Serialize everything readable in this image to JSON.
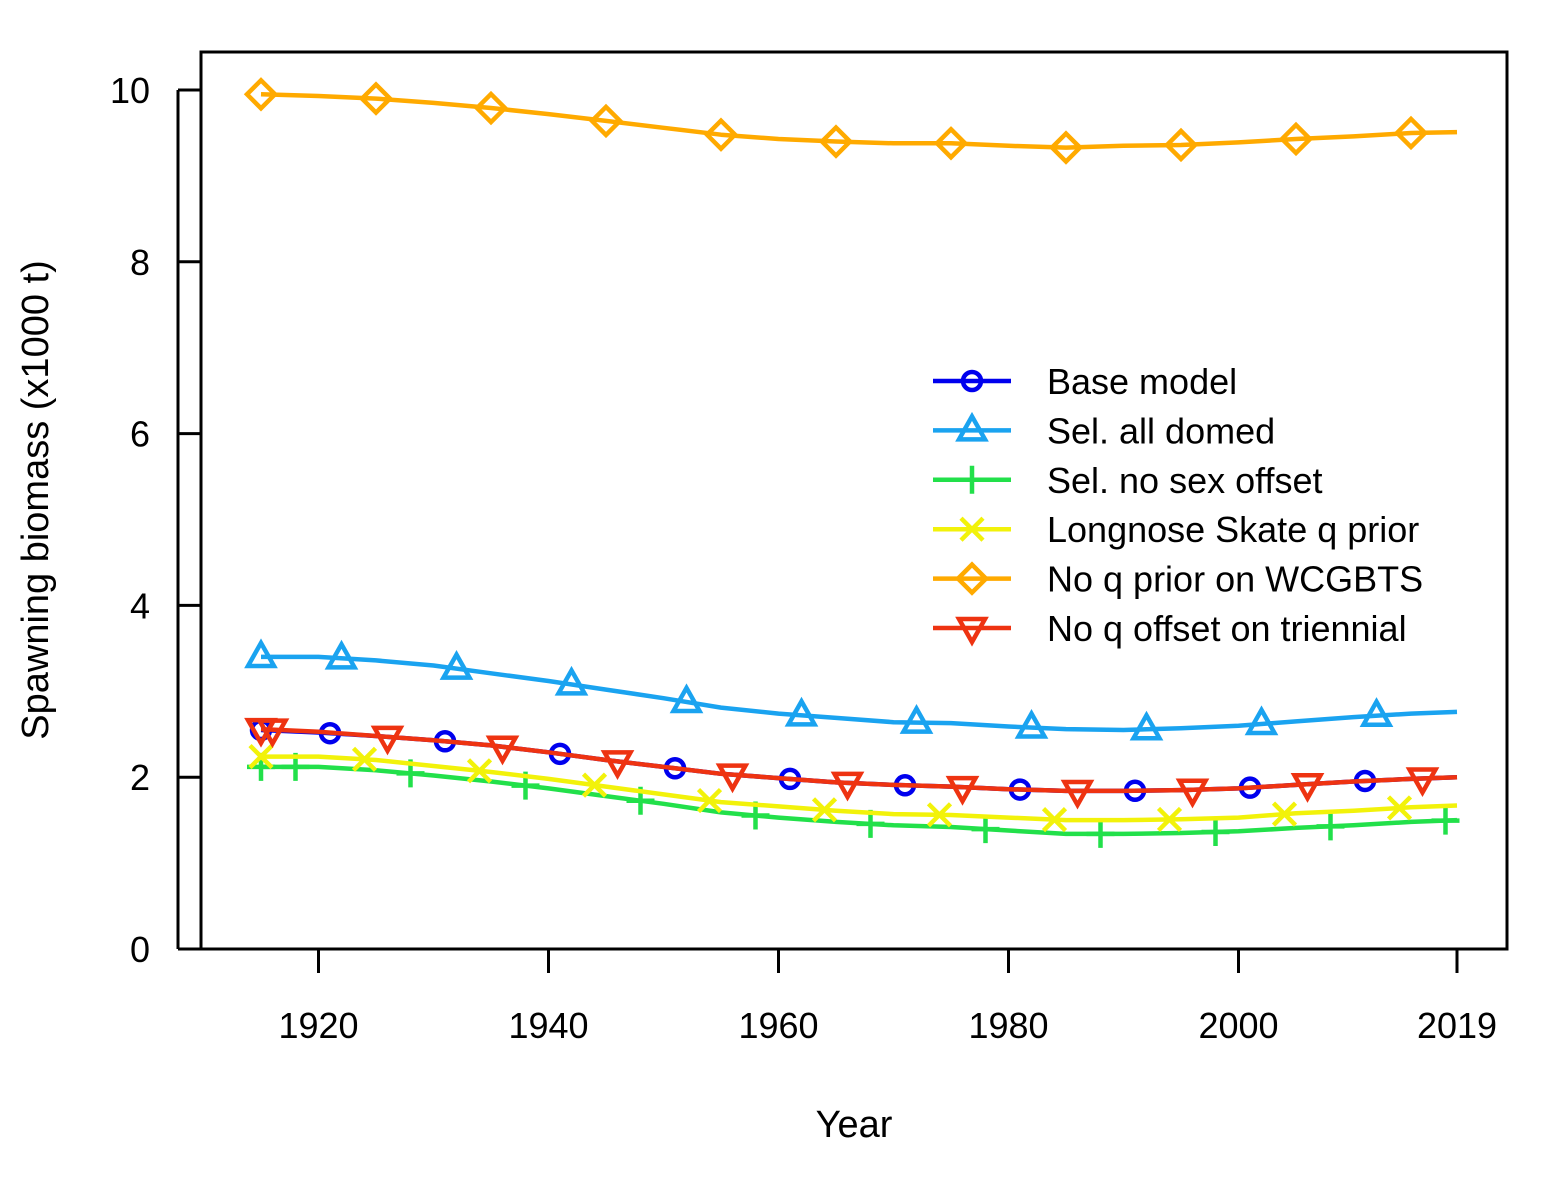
{
  "chart_data": {
    "type": "line",
    "title": "",
    "xlabel": "Year",
    "ylabel": "Spawning biomass (x1000 t)",
    "xlim": [
      1910,
      2023
    ],
    "ylim": [
      0,
      10.5
    ],
    "x_ticks": [
      1920,
      1940,
      1960,
      1980,
      2000,
      2019
    ],
    "x_tick_labels": [
      "1920",
      "1940",
      "1960",
      "1980",
      "2000",
      "2019"
    ],
    "y_ticks": [
      0,
      2,
      4,
      6,
      8,
      10
    ],
    "y_tick_labels": [
      "0",
      "2",
      "4",
      "6",
      "8",
      "10"
    ],
    "grid": false,
    "legend_position": "center-right",
    "series": [
      {
        "name": "Base model",
        "color": "#0000ee",
        "marker": "circle",
        "x": [
          1915,
          1920,
          1925,
          1930,
          1935,
          1940,
          1945,
          1950,
          1955,
          1960,
          1965,
          1970,
          1975,
          1980,
          1985,
          1990,
          1995,
          2000,
          2005,
          2010,
          2015,
          2019
        ],
        "values": [
          2.55,
          2.52,
          2.48,
          2.43,
          2.37,
          2.29,
          2.2,
          2.12,
          2.04,
          1.99,
          1.94,
          1.91,
          1.89,
          1.86,
          1.84,
          1.84,
          1.85,
          1.87,
          1.91,
          1.95,
          1.98,
          2.0
        ],
        "marker_x": [
          1915,
          1921,
          1931,
          1941,
          1951,
          1961,
          1971,
          1981,
          1991,
          2001,
          2011
        ]
      },
      {
        "name": "Sel. all domed",
        "color": "#1aa3f0",
        "marker": "triangle-up",
        "x": [
          1915,
          1920,
          1925,
          1930,
          1935,
          1940,
          1945,
          1950,
          1955,
          1960,
          1965,
          1970,
          1975,
          1980,
          1985,
          1990,
          1995,
          2000,
          2005,
          2010,
          2015,
          2019
        ],
        "values": [
          3.4,
          3.4,
          3.36,
          3.3,
          3.21,
          3.12,
          3.02,
          2.92,
          2.81,
          2.74,
          2.69,
          2.64,
          2.63,
          2.59,
          2.56,
          2.55,
          2.57,
          2.6,
          2.65,
          2.7,
          2.74,
          2.76
        ],
        "marker_x": [
          1915,
          1922,
          1932,
          1942,
          1952,
          1962,
          1972,
          1982,
          1992,
          2002,
          2012
        ]
      },
      {
        "name": "Sel. no sex offset",
        "color": "#22e04a",
        "marker": "plus",
        "x": [
          1915,
          1920,
          1925,
          1930,
          1935,
          1940,
          1945,
          1950,
          1955,
          1960,
          1965,
          1970,
          1975,
          1980,
          1985,
          1990,
          1995,
          2000,
          2005,
          2010,
          2015,
          2019
        ],
        "values": [
          2.12,
          2.12,
          2.08,
          2.02,
          1.95,
          1.87,
          1.78,
          1.69,
          1.59,
          1.53,
          1.48,
          1.44,
          1.42,
          1.38,
          1.34,
          1.34,
          1.35,
          1.37,
          1.41,
          1.44,
          1.48,
          1.5
        ],
        "marker_x": [
          1915,
          1918,
          1928,
          1938,
          1948,
          1958,
          1968,
          1978,
          1988,
          1998,
          2008,
          2018
        ]
      },
      {
        "name": "Longnose Skate q prior",
        "color": "#f2f20a",
        "marker": "x",
        "x": [
          1915,
          1920,
          1925,
          1930,
          1935,
          1940,
          1945,
          1950,
          1955,
          1960,
          1965,
          1970,
          1975,
          1980,
          1985,
          1990,
          1995,
          2000,
          2005,
          2010,
          2015,
          2019
        ],
        "values": [
          2.24,
          2.24,
          2.2,
          2.13,
          2.06,
          1.98,
          1.89,
          1.8,
          1.71,
          1.66,
          1.61,
          1.57,
          1.56,
          1.53,
          1.5,
          1.5,
          1.51,
          1.53,
          1.58,
          1.61,
          1.65,
          1.67
        ],
        "marker_x": [
          1915,
          1924,
          1934,
          1944,
          1954,
          1964,
          1974,
          1984,
          1994,
          2004,
          2014
        ]
      },
      {
        "name": "No q prior on WCGBTS",
        "color": "#ffaa00",
        "marker": "diamond",
        "x": [
          1915,
          1920,
          1925,
          1930,
          1935,
          1940,
          1945,
          1950,
          1955,
          1960,
          1965,
          1970,
          1975,
          1980,
          1985,
          1990,
          1995,
          2000,
          2005,
          2010,
          2015,
          2019
        ],
        "values": [
          9.95,
          9.93,
          9.9,
          9.85,
          9.79,
          9.72,
          9.64,
          9.56,
          9.48,
          9.43,
          9.4,
          9.38,
          9.38,
          9.35,
          9.33,
          9.35,
          9.36,
          9.39,
          9.43,
          9.46,
          9.5,
          9.51
        ],
        "marker_x": [
          1915,
          1925,
          1935,
          1945,
          1955,
          1965,
          1975,
          1985,
          1995,
          2005,
          2015
        ]
      },
      {
        "name": "No q offset on triennial",
        "color": "#ee3311",
        "marker": "triangle-down",
        "x": [
          1915,
          1920,
          1925,
          1930,
          1935,
          1940,
          1945,
          1950,
          1955,
          1960,
          1965,
          1970,
          1975,
          1980,
          1985,
          1990,
          1995,
          2000,
          2005,
          2010,
          2015,
          2019
        ],
        "values": [
          2.56,
          2.53,
          2.48,
          2.43,
          2.37,
          2.29,
          2.2,
          2.12,
          2.04,
          1.99,
          1.94,
          1.91,
          1.89,
          1.86,
          1.84,
          1.84,
          1.85,
          1.87,
          1.91,
          1.95,
          1.98,
          2.0
        ],
        "marker_x": [
          1915,
          1916,
          1926,
          1936,
          1946,
          1956,
          1966,
          1976,
          1986,
          1996,
          2006,
          2016
        ]
      }
    ]
  }
}
